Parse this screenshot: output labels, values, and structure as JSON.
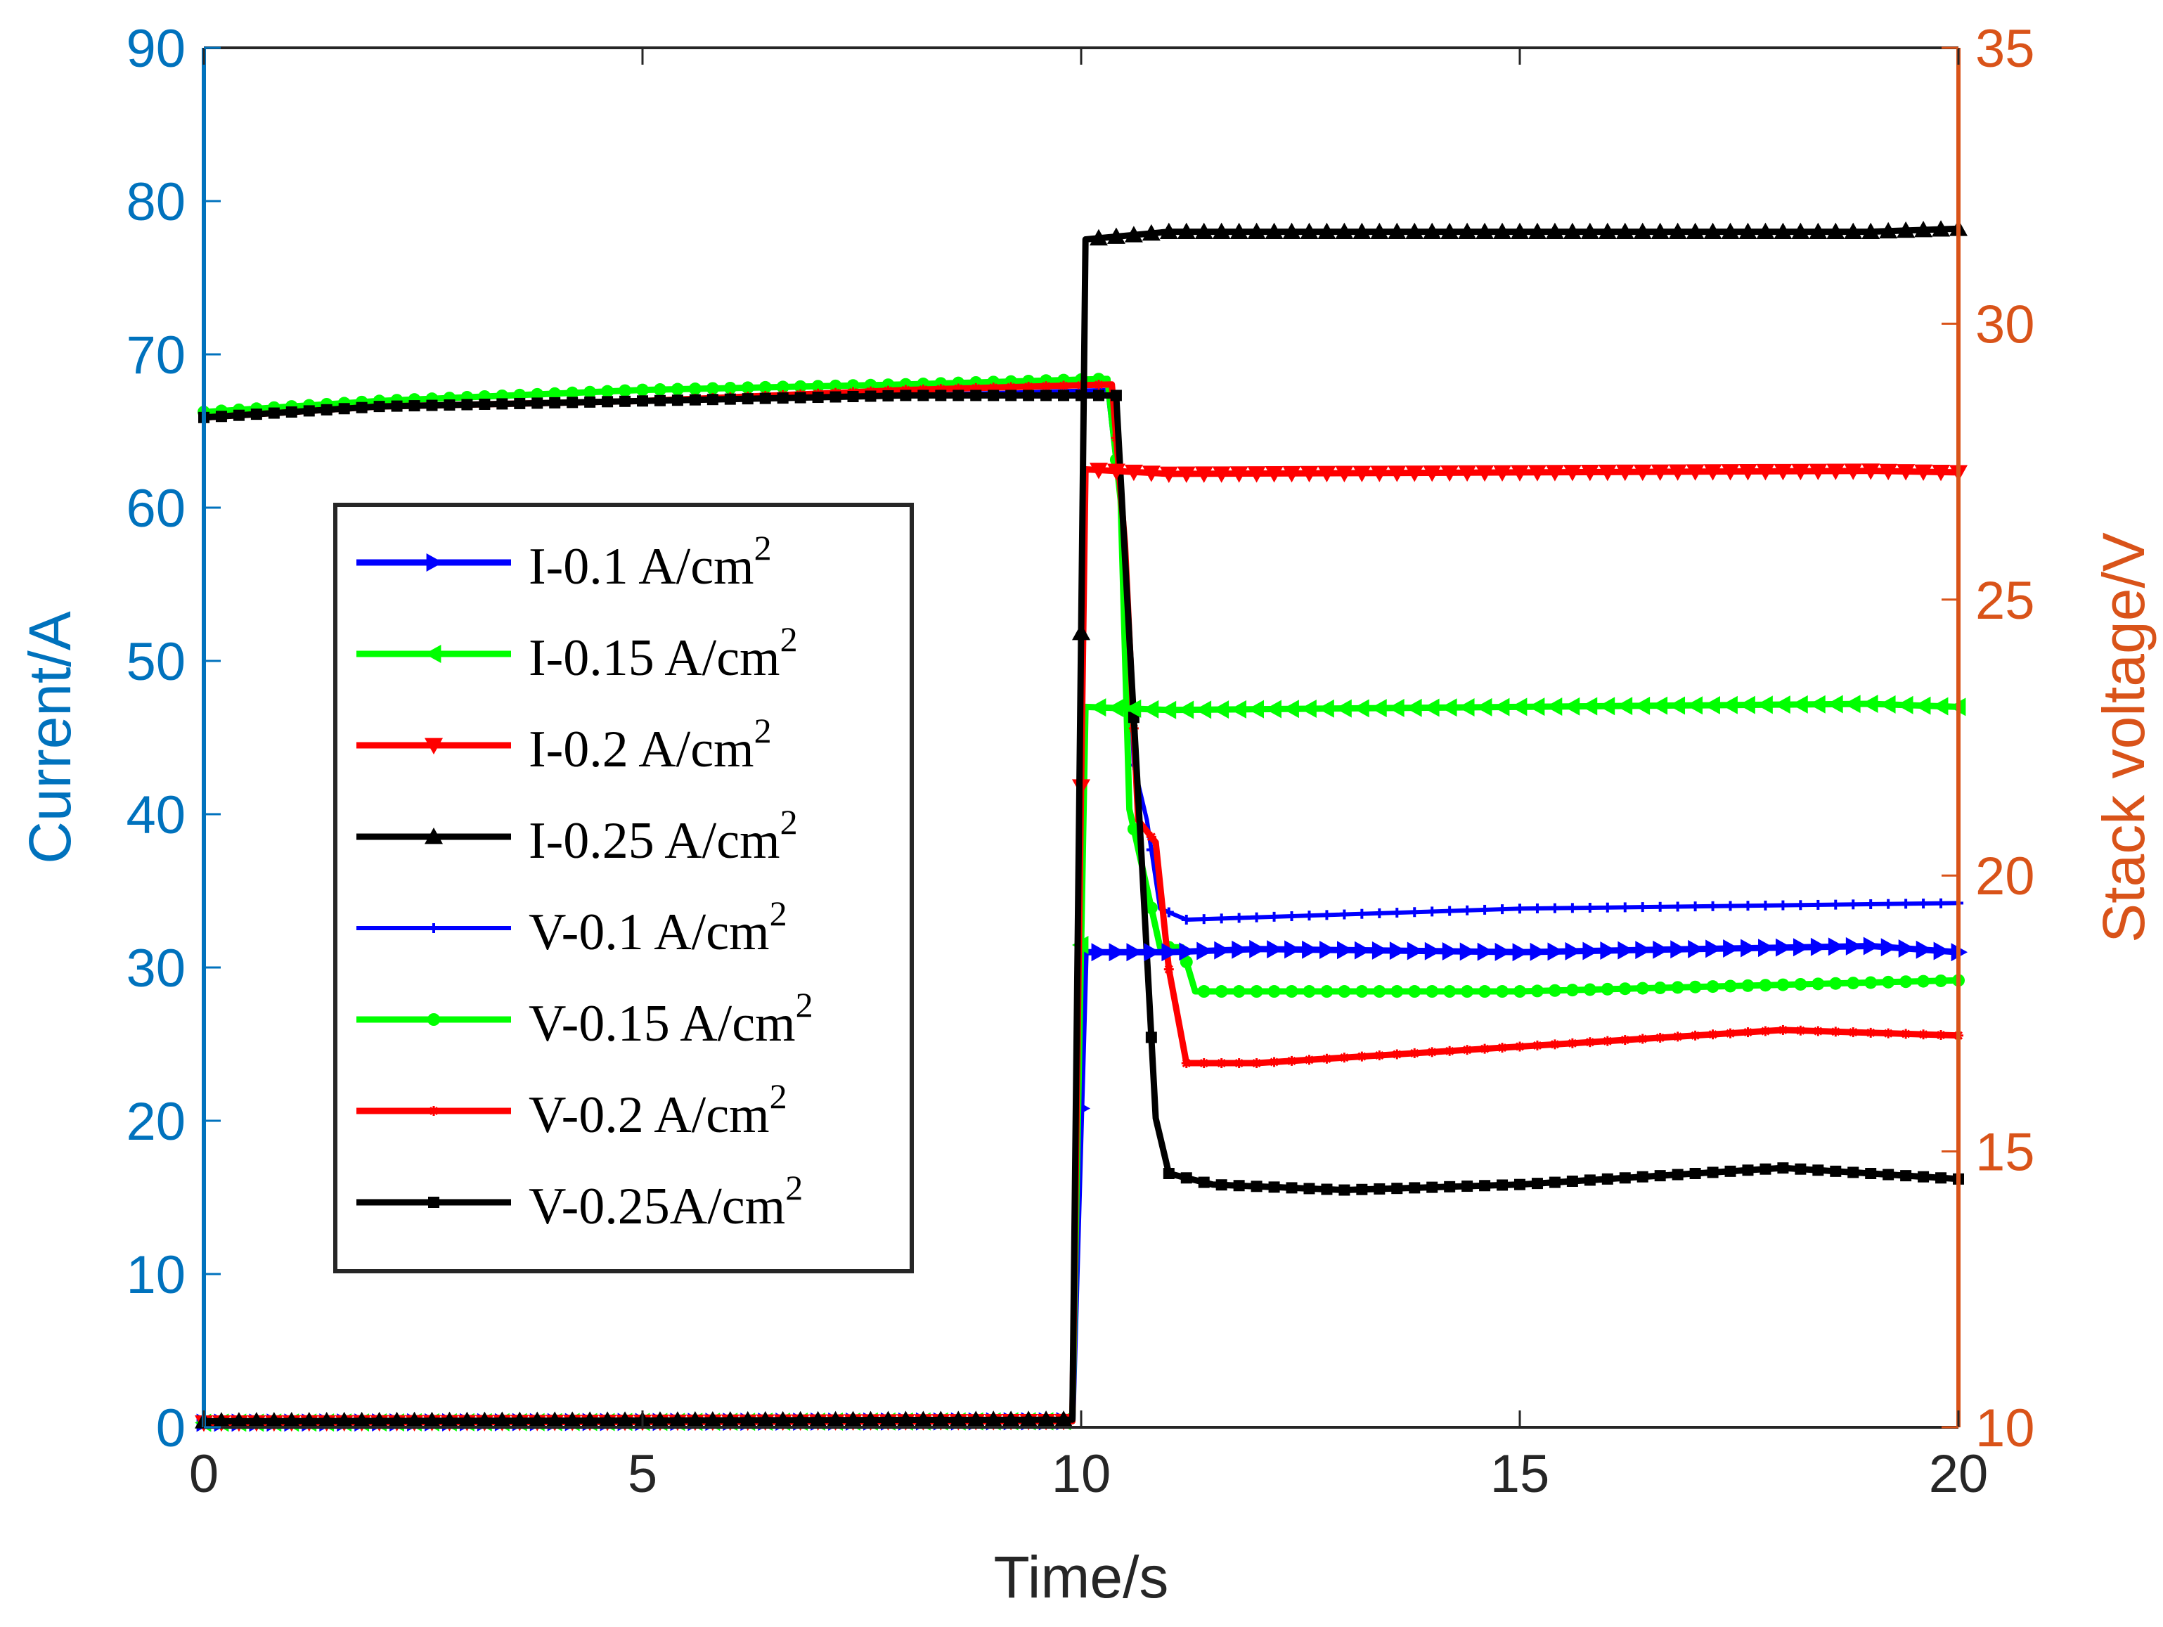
{
  "chart_data": {
    "type": "line",
    "title": "",
    "xlabel": "Time/s",
    "ylabel": "Current/A",
    "y2label": "Stack voltage/V",
    "xlim": [
      0,
      20
    ],
    "ylim": [
      0,
      90
    ],
    "y2lim": [
      10,
      35
    ],
    "xticks": [
      "0",
      "5",
      "10",
      "15",
      "20"
    ],
    "yticks": [
      "0",
      "10",
      "20",
      "30",
      "40",
      "50",
      "60",
      "70",
      "80",
      "90"
    ],
    "y2ticks": [
      "10",
      "15",
      "20",
      "25",
      "30",
      "35"
    ],
    "legend_position": "center-left",
    "colors": {
      "left_axis": "#0072BD",
      "right_axis": "#D95319",
      "blue": "#0000FF",
      "green": "#00FF00",
      "red": "#FF0000",
      "black": "#000000"
    },
    "series": [
      {
        "name": "I-0.1 A/cm",
        "sup": "2",
        "axis": "left",
        "color": "blue",
        "marker": "tri-right",
        "linewidth": "thick",
        "x": [
          0,
          9.9,
          10.05,
          11,
          12,
          15,
          17,
          19,
          20
        ],
        "y": [
          0.3,
          0.4,
          31,
          31,
          31.2,
          31,
          31.2,
          31.4,
          31
        ]
      },
      {
        "name": "I-0.15 A/cm",
        "sup": "2",
        "axis": "left",
        "color": "green",
        "marker": "tri-left",
        "linewidth": "thick",
        "x": [
          0,
          9.9,
          10.05,
          11,
          15,
          19,
          20
        ],
        "y": [
          0.3,
          0.4,
          47,
          46.8,
          47,
          47.2,
          47
        ]
      },
      {
        "name": "I-0.2 A/cm",
        "sup": "2",
        "axis": "left",
        "color": "red",
        "marker": "tri-down",
        "linewidth": "thick",
        "x": [
          0,
          9.9,
          10.05,
          11,
          15,
          19,
          20
        ],
        "y": [
          0.3,
          0.4,
          62.5,
          62.2,
          62.3,
          62.4,
          62.3
        ]
      },
      {
        "name": "I-0.25 A/cm",
        "sup": "2",
        "axis": "left",
        "color": "black",
        "marker": "tri-up",
        "linewidth": "thick",
        "x": [
          0,
          9.9,
          10.05,
          11,
          15,
          19,
          20
        ],
        "y": [
          0.4,
          0.5,
          77.5,
          78,
          78,
          78,
          78.2
        ]
      },
      {
        "name": "V-0.1 A/cm",
        "sup": "2",
        "axis": "right",
        "color": "blue",
        "marker": "plus",
        "linewidth": "thin",
        "x": [
          0,
          2,
          5,
          8,
          10.3,
          10.5,
          10.6,
          10.75,
          10.9,
          11.2,
          15,
          20
        ],
        "y": [
          28.3,
          28.5,
          28.6,
          28.7,
          28.8,
          26,
          22,
          21,
          19.4,
          19.2,
          19.4,
          19.5
        ]
      },
      {
        "name": "V-0.15 A/cm",
        "sup": "2",
        "axis": "right",
        "color": "green",
        "marker": "circle",
        "linewidth": "thick",
        "x": [
          0,
          2,
          5,
          8,
          10.3,
          10.45,
          10.55,
          10.9,
          11.15,
          11.3,
          15,
          20
        ],
        "y": [
          28.4,
          28.6,
          28.8,
          28.9,
          29,
          26.8,
          21.2,
          18.7,
          18.7,
          17.9,
          17.9,
          18.1
        ]
      },
      {
        "name": "V-0.2 A/cm",
        "sup": "2",
        "axis": "right",
        "color": "red",
        "marker": "star",
        "linewidth": "thick",
        "x": [
          0,
          2,
          5,
          8,
          10.35,
          10.5,
          10.65,
          10.85,
          11,
          11.2,
          12,
          15,
          18,
          20
        ],
        "y": [
          28.3,
          28.5,
          28.6,
          28.8,
          28.9,
          26,
          21,
          20.6,
          18.3,
          16.6,
          16.6,
          16.9,
          17.2,
          17.1
        ]
      },
      {
        "name": "V-0.25A/cm",
        "sup": "2",
        "axis": "right",
        "color": "black",
        "marker": "square",
        "linewidth": "thick",
        "x": [
          0,
          2,
          5,
          8,
          10,
          10.4,
          10.55,
          10.7,
          10.85,
          11,
          11.5,
          13,
          15,
          18,
          20
        ],
        "y": [
          28.3,
          28.5,
          28.6,
          28.7,
          28.7,
          28.7,
          24.3,
          20,
          15.6,
          14.6,
          14.4,
          14.3,
          14.4,
          14.7,
          14.5
        ]
      }
    ]
  }
}
